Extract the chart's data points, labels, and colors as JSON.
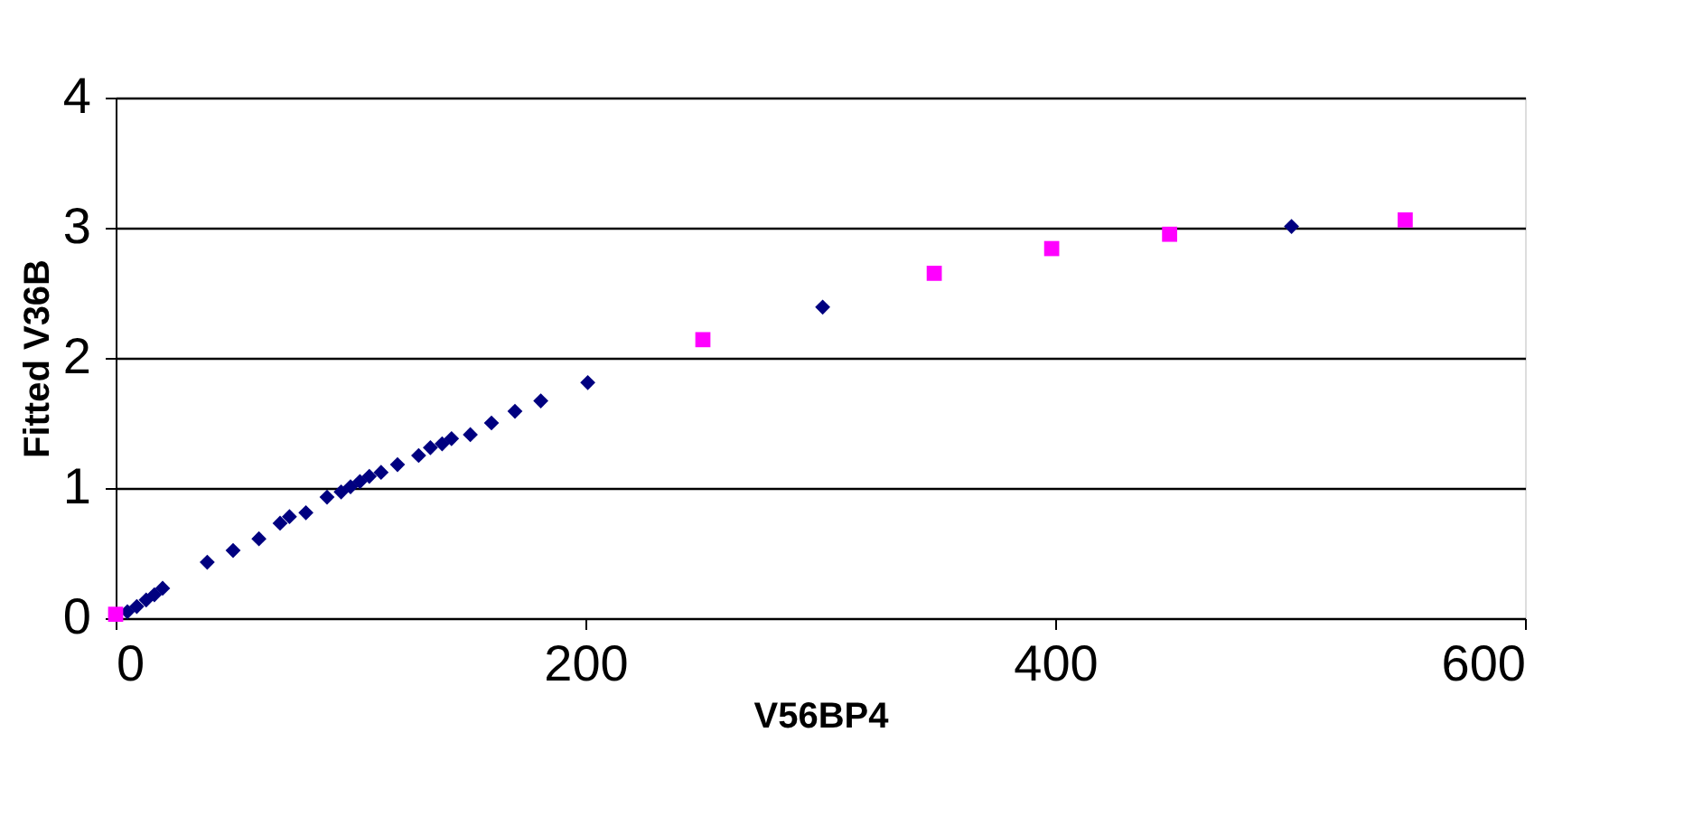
{
  "chart_data": {
    "type": "scatter",
    "xlabel": "V56BP4",
    "ylabel": "Fitted V36B",
    "xlim": [
      0,
      600
    ],
    "xticks": [
      0,
      200,
      400,
      600
    ],
    "ylim": [
      0,
      4
    ],
    "yticks": [
      0,
      1,
      2,
      3,
      4
    ],
    "grid": "y",
    "series": [
      {
        "color": "#000080",
        "marker": "diamond",
        "x": [
          5,
          9,
          13,
          16.5,
          20,
          39,
          50,
          61,
          70,
          74,
          81,
          90,
          96,
          100,
          104,
          108,
          113,
          120,
          129,
          134,
          139,
          143,
          151,
          160,
          170,
          181,
          201,
          301,
          500.6
        ],
        "values": [
          0.05,
          0.09,
          0.14,
          0.18,
          0.23,
          0.43,
          0.52,
          0.61,
          0.73,
          0.78,
          0.81,
          0.93,
          0.97,
          1.01,
          1.05,
          1.09,
          1.12,
          1.18,
          1.25,
          1.31,
          1.34,
          1.38,
          1.41,
          1.5,
          1.59,
          1.67,
          1.81,
          2.39,
          3.01
        ]
      },
      {
        "color": "#ff00ff",
        "marker": "square",
        "x": [
          0,
          250,
          348.5,
          398.5,
          448.7,
          549
        ],
        "values": [
          0.03,
          2.14,
          2.65,
          2.84,
          2.95,
          3.06
        ]
      }
    ]
  }
}
